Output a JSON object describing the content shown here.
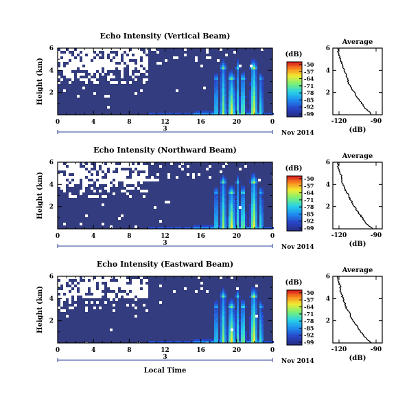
{
  "chart_data": [
    {
      "type": "heatmap",
      "title": "Echo Intensity (Vertical Beam)",
      "xlabel": "",
      "ylabel": "Height (km)",
      "x_ticks": [
        "0",
        "4",
        "8",
        "12",
        "16",
        "20",
        "0"
      ],
      "y_ticks": [
        "6",
        "4",
        "2"
      ],
      "xlim": [
        0,
        24
      ],
      "ylim": [
        0,
        6
      ],
      "date_day": "3",
      "date_label": "Nov 2014",
      "colorbar": {
        "unit": "(dB)",
        "ticks": [
          "-50",
          "-57",
          "-64",
          "-71",
          "-78",
          "-85",
          "-92",
          "-99"
        ]
      },
      "average": {
        "title": "Average",
        "xlabel": "(dB)",
        "x_ticks": [
          "-120",
          "-90"
        ],
        "y_ticks": [
          "6",
          "4",
          "2"
        ],
        "xlim": [
          -125,
          -85
        ],
        "ylim": [
          0,
          6
        ],
        "profile_db": [
          -94,
          -96,
          -99,
          -101,
          -103,
          -105,
          -107,
          -109,
          -111,
          -112,
          -113,
          -114,
          -115,
          -116,
          -117,
          -118,
          -119,
          -120,
          -121,
          -121
        ]
      }
    },
    {
      "type": "heatmap",
      "title": "Echo Intensity (Northward Beam)",
      "xlabel": "",
      "ylabel": "Height (km)",
      "x_ticks": [
        "0",
        "4",
        "8",
        "12",
        "16",
        "20",
        "0"
      ],
      "y_ticks": [
        "6",
        "4",
        "2"
      ],
      "xlim": [
        0,
        24
      ],
      "ylim": [
        0,
        6
      ],
      "date_day": "3",
      "date_label": "Nov 2014",
      "colorbar": {
        "unit": "(dB)",
        "ticks": [
          "-50",
          "-57",
          "-64",
          "-71",
          "-78",
          "-85",
          "-92",
          "-99"
        ]
      },
      "average": {
        "title": "Average",
        "xlabel": "(dB)",
        "x_ticks": [
          "-120",
          "-90"
        ],
        "y_ticks": [
          "6",
          "4",
          "2"
        ],
        "xlim": [
          -125,
          -85
        ],
        "ylim": [
          0,
          6
        ],
        "profile_db": [
          -93,
          -96,
          -99,
          -101,
          -103,
          -105,
          -107,
          -109,
          -110,
          -112,
          -113,
          -115,
          -116,
          -117,
          -118,
          -118,
          -119,
          -120,
          -121,
          -121
        ]
      }
    },
    {
      "type": "heatmap",
      "title": "Echo Intensity (Eastward Beam)",
      "xlabel": "Local Time",
      "ylabel": "Height (km)",
      "x_ticks": [
        "0",
        "4",
        "8",
        "12",
        "16",
        "20",
        "0"
      ],
      "y_ticks": [
        "6",
        "4",
        "2"
      ],
      "xlim": [
        0,
        24
      ],
      "ylim": [
        0,
        6
      ],
      "date_day": "3",
      "date_label": "Nov 2014",
      "colorbar": {
        "unit": "(dB)",
        "ticks": [
          "-50",
          "-57",
          "-64",
          "-71",
          "-78",
          "-85",
          "-92",
          "-99"
        ]
      },
      "average": {
        "title": "Average",
        "xlabel": "(dB)",
        "x_ticks": [
          "-120",
          "-90"
        ],
        "y_ticks": [
          "6",
          "4",
          "2"
        ],
        "xlim": [
          -125,
          -85
        ],
        "ylim": [
          0,
          6
        ],
        "profile_db": [
          -94,
          -97,
          -100,
          -102,
          -104,
          -106,
          -108,
          -110,
          -111,
          -112,
          -114,
          -115,
          -116,
          -117,
          -118,
          -119,
          -119,
          -120,
          -121,
          -121
        ]
      }
    }
  ]
}
